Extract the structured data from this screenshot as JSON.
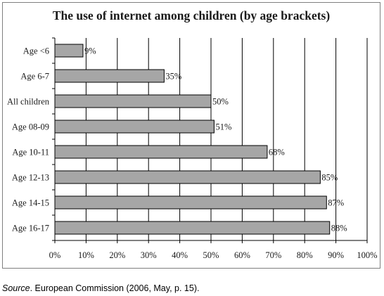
{
  "chart_data": {
    "type": "bar",
    "orientation": "horizontal",
    "title": "The use of internet among children (by age brackets)",
    "categories": [
      "Age <6",
      "Age 6-7",
      "All children",
      "Age 08-09",
      "Age 10-11",
      "Age 12-13",
      "Age 14-15",
      "Age 16-17"
    ],
    "values": [
      9,
      35,
      50,
      51,
      68,
      85,
      87,
      88
    ],
    "data_labels": [
      "9%",
      "35%",
      "50%",
      "51%",
      "68%",
      "85%",
      "87%",
      "88%"
    ],
    "xlim": [
      0,
      100
    ],
    "x_ticks": [
      0,
      10,
      20,
      30,
      40,
      50,
      60,
      70,
      80,
      90,
      100
    ],
    "x_tick_labels": [
      "0%",
      "10%",
      "20%",
      "30%",
      "40%",
      "50%",
      "60%",
      "70%",
      "80%",
      "90%",
      "100%"
    ],
    "grid": "vertical major gridlines",
    "legend": "none",
    "bar_color": "#a6a6a6",
    "bar_edge_color": "#000000",
    "grid_color": "#000000"
  },
  "source": {
    "prefix": "Source",
    "text": ". European Commission (2006, May, p. 15)."
  }
}
